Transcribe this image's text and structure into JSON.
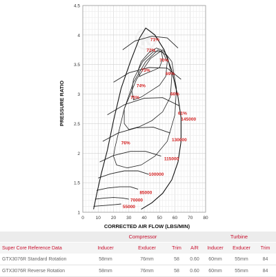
{
  "chart_data": {
    "type": "line",
    "xlabel": "CORRECTED AIR FLOW (LBS/MIN)",
    "ylabel": "PRESSURE RATIO",
    "xlim": [
      0,
      80
    ],
    "ylim": [
      1,
      4.5
    ],
    "x_ticks": [
      "0",
      "10",
      "20",
      "30",
      "40",
      "50",
      "60",
      "70",
      "80"
    ],
    "y_ticks": [
      "1",
      "1.5",
      "2",
      "2.5",
      "3",
      "3.5",
      "4",
      "4.5"
    ],
    "grid": true,
    "efficiency_labels": [
      {
        "text": "71%",
        "x": 44,
        "y": 3.9
      },
      {
        "text": "72%",
        "x": 41.5,
        "y": 3.72
      },
      {
        "text": "70%",
        "x": 50,
        "y": 3.55
      },
      {
        "text": "73%",
        "x": 38,
        "y": 3.38
      },
      {
        "text": "69%",
        "x": 54,
        "y": 3.32
      },
      {
        "text": "74%",
        "x": 35,
        "y": 3.12
      },
      {
        "text": "66%",
        "x": 57,
        "y": 2.98
      },
      {
        "text": "75%",
        "x": 31,
        "y": 2.92
      },
      {
        "text": "61%",
        "x": 62,
        "y": 2.65
      },
      {
        "text": "76%",
        "x": 25,
        "y": 2.15
      }
    ],
    "speed_lines": [
      {
        "label": "55000",
        "x": [
          7,
          12,
          17,
          21,
          25
        ],
        "y": [
          1.1,
          1.11,
          1.12,
          1.13,
          1.14
        ],
        "label_x": 26,
        "label_y": 1.07
      },
      {
        "label": "70000",
        "x": [
          8,
          14,
          20,
          26,
          30
        ],
        "y": [
          1.22,
          1.24,
          1.25,
          1.24,
          1.22
        ],
        "label_x": 31,
        "label_y": 1.18
      },
      {
        "label": "85000",
        "x": [
          9,
          16,
          24,
          31,
          36
        ],
        "y": [
          1.37,
          1.41,
          1.43,
          1.43,
          1.39
        ],
        "label_x": 37,
        "label_y": 1.31
      },
      {
        "label": "100000",
        "x": [
          10,
          18,
          27,
          36,
          43
        ],
        "y": [
          1.58,
          1.65,
          1.7,
          1.7,
          1.64
        ],
        "label_x": 43,
        "label_y": 1.62
      },
      {
        "label": "115000",
        "x": [
          11,
          20,
          31,
          41,
          51
        ],
        "y": [
          1.85,
          1.96,
          2.03,
          2.03,
          1.95
        ],
        "label_x": 53,
        "label_y": 1.88
      },
      {
        "label": "130000",
        "x": [
          13,
          23,
          35,
          46,
          57
        ],
        "y": [
          2.2,
          2.34,
          2.43,
          2.44,
          2.34
        ],
        "label_x": 58,
        "label_y": 2.2
      },
      {
        "label": "145000",
        "x": [
          16,
          27,
          40,
          52,
          63
        ],
        "y": [
          2.65,
          2.82,
          2.93,
          2.94,
          2.8
        ],
        "label_x": 64,
        "label_y": 2.55
      },
      {
        "label": "",
        "x": [
          20,
          30,
          43,
          55,
          64
        ],
        "y": [
          3.2,
          3.36,
          3.45,
          3.44,
          3.25
        ],
        "label_x": 0,
        "label_y": 0
      },
      {
        "label": "",
        "x": [
          26,
          34,
          45,
          55,
          62
        ],
        "y": [
          3.75,
          3.9,
          3.98,
          3.95,
          3.78
        ],
        "label_x": 0,
        "label_y": 0
      }
    ],
    "surge_line": {
      "x": [
        7,
        9,
        12,
        16,
        20,
        25,
        31,
        37,
        41
      ],
      "y": [
        1.05,
        1.3,
        1.65,
        2.05,
        2.55,
        3.1,
        3.55,
        3.95,
        4.12
      ]
    },
    "choke_line": {
      "x": [
        41,
        47,
        53,
        58,
        62,
        64,
        64,
        62,
        58,
        52,
        45,
        38
      ],
      "y": [
        4.12,
        4.0,
        3.75,
        3.4,
        2.95,
        2.6,
        2.2,
        1.85,
        1.55,
        1.32,
        1.16,
        1.05
      ]
    },
    "efficiency_islands": [
      {
        "x": [
          38,
          43,
          48,
          51,
          52,
          50,
          46,
          41,
          37,
          36,
          38
        ],
        "y": [
          3.55,
          3.7,
          3.78,
          3.75,
          3.6,
          3.45,
          3.4,
          3.35,
          3.3,
          3.4,
          3.55
        ]
      },
      {
        "x": [
          33,
          39,
          46,
          52,
          55,
          54,
          50,
          44,
          38,
          33,
          32,
          33
        ],
        "y": [
          3.25,
          3.55,
          3.72,
          3.72,
          3.55,
          3.3,
          3.15,
          3.05,
          2.95,
          2.9,
          3.05,
          3.25
        ]
      },
      {
        "x": [
          27,
          33,
          41,
          49,
          55,
          58,
          57,
          52,
          45,
          37,
          30,
          27,
          27
        ],
        "y": [
          2.75,
          3.2,
          3.55,
          3.75,
          3.65,
          3.3,
          2.95,
          2.7,
          2.55,
          2.45,
          2.4,
          2.5,
          2.75
        ]
      },
      {
        "x": [
          21,
          27,
          35,
          44,
          52,
          58,
          61,
          60,
          55,
          47,
          38,
          29,
          22,
          20,
          21
        ],
        "y": [
          2.1,
          2.75,
          3.25,
          3.6,
          3.75,
          3.55,
          3.1,
          2.65,
          2.2,
          1.95,
          1.8,
          1.75,
          1.8,
          1.95,
          2.1
        ]
      }
    ]
  },
  "table": {
    "title": "Super Core Reference Data",
    "group_compressor": "Compressor",
    "group_turbine": "Turbine",
    "columns": [
      "Inducer",
      "Exducer",
      "Trim",
      "A/R",
      "Inducer",
      "Exducer",
      "Trim"
    ],
    "rows": [
      {
        "name": "GTX3076R  Standard Rotation",
        "cells": [
          "58mm",
          "76mm",
          "58",
          "0.60",
          "60mm",
          "55mm",
          "84"
        ]
      },
      {
        "name": "GTX3076R  Reverse Rotation",
        "cells": [
          "58mm",
          "76mm",
          "58",
          "0.60",
          "60mm",
          "55mm",
          "84"
        ]
      }
    ]
  }
}
